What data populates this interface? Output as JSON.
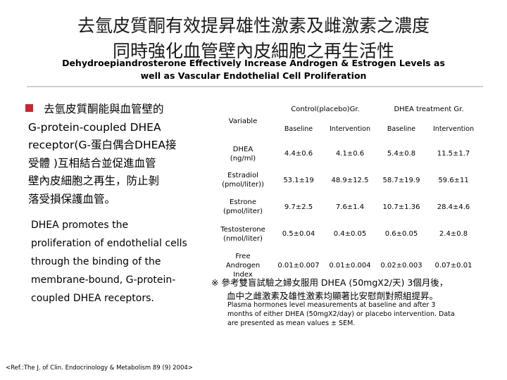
{
  "title": {
    "zh_line1": "去氫皮質酮有效提昇雄性激素及雌激素之濃度",
    "zh_line2": "同時強化血管壁內皮細胞之再生活性",
    "en_line1": "Dehydroepiandrosterone Effectively Increase Androgen & Estrogen Levels as",
    "en_line2": "well as Vascular Endothelial Cell Proliferation"
  },
  "body": {
    "zh_text": "去氫皮質酮能與血管壁的\nG-protein-coupled DHEA\nreceptor(G-蛋白偶合DHEA接\n受體 )互相結合並促進血管\n壁內皮細胞之再生，防止剝\n落受損保護血管。",
    "en_text": "DHEA promotes the\nproliferation of endothelial cells\nthrough the binding of the\nmembrane-bound, G-protein-\ncoupled DHEA receptors."
  },
  "table": {
    "variable_label": "Variable",
    "group_control": "Control(placebo)Gr.",
    "group_dhea": "DHEA treatment Gr.",
    "sub_headers": [
      "Baseline",
      "Intervention",
      "Baseline",
      "Intervention"
    ],
    "rows": [
      {
        "variable": "DHEA\n(ng/ml)",
        "values": [
          "4.4±0.6",
          "4.1±0.6",
          "5.4±0.8",
          "11.5±1.7"
        ]
      },
      {
        "variable": "Estradiol\n(pmol/liter))",
        "values": [
          "53.1±19",
          "48.9±12.5",
          "58.7±19.9",
          "59.6±11"
        ]
      },
      {
        "variable": "Estrone\n(pmol/liter)",
        "values": [
          "9.7±2.5",
          "7.6±1.4",
          "10.7±1.36",
          "28.4±4.6"
        ]
      },
      {
        "variable": "Testosterone\n(nmol/liter)",
        "values": [
          "0.5±0.04",
          "0.4±0.05",
          "0.6±0.05",
          "2.4±0.8"
        ]
      },
      {
        "variable": "Free\nAndrogen\nIndex",
        "values": [
          "0.01±0.007",
          "0.01±0.004",
          "0.02±0.003",
          "0.07±0.01"
        ]
      }
    ]
  },
  "note": {
    "zh_line1": "※ 參考雙盲試驗之婦女服用 DHEA (50mgX2/天) 3個月後，",
    "zh_line2": "血中之雌激素及雄性激素均顯著比安慰劑對照組提昇。",
    "en_text": "Plasma hormones level measurements at baseline and after 3\nmonths of either DHEA  (50mgX2/day) or placebo intervention. Data\nare presented as mean values ± SEM."
  },
  "reference": "<Ref.:The J. of Clin. Endocrinology & Metabolism 89 (9) 2004>",
  "colors": {
    "bullet": "#c8282d",
    "rule": "#d0d0d0"
  }
}
